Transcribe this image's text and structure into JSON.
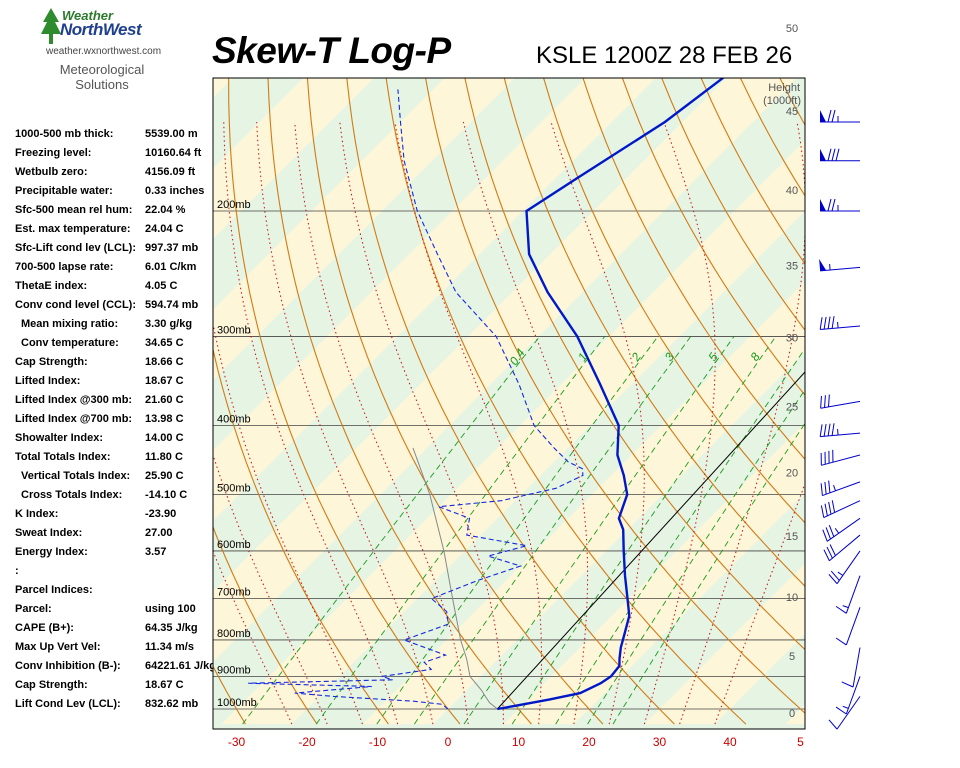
{
  "header": {
    "brand_line1": "Weather",
    "brand_line2": "NorthWest",
    "website": "weather.wxnorthwest.com",
    "subtitle_line1": "Meteorological",
    "subtitle_line2": "Solutions",
    "title": "Skew-T Log-P",
    "station_time": "KSLE 1200Z 28 FEB 26"
  },
  "indices": [
    {
      "label": "1000-500 mb thick:",
      "value": "5539.00 m",
      "indent": false
    },
    {
      "label": "Freezing level:",
      "value": "10160.64 ft",
      "indent": false
    },
    {
      "label": "Wetbulb zero:",
      "value": "4156.09 ft",
      "indent": false
    },
    {
      "label": "Precipitable water:",
      "value": "0.33 inches",
      "indent": false
    },
    {
      "label": "Sfc-500 mean rel hum:",
      "value": "22.04 %",
      "indent": false
    },
    {
      "label": "Est. max temperature:",
      "value": "24.04 C",
      "indent": false
    },
    {
      "label": "Sfc-Lift cond lev (LCL):",
      "value": "997.37 mb",
      "indent": false
    },
    {
      "label": "700-500 lapse rate:",
      "value": "6.01 C/km",
      "indent": false
    },
    {
      "label": "ThetaE index:",
      "value": "4.05 C",
      "indent": false
    },
    {
      "label": "Conv cond level (CCL):",
      "value": "594.74 mb",
      "indent": false
    },
    {
      "label": "Mean mixing ratio:",
      "value": "3.30 g/kg",
      "indent": true
    },
    {
      "label": "Conv temperature:",
      "value": "34.65 C",
      "indent": true
    },
    {
      "label": "Cap Strength:",
      "value": "18.66 C",
      "indent": false
    },
    {
      "label": "Lifted Index:",
      "value": "18.67 C",
      "indent": false
    },
    {
      "label": "Lifted Index @300 mb:",
      "value": "21.60 C",
      "indent": false
    },
    {
      "label": "Lifted Index @700 mb:",
      "value": "13.98 C",
      "indent": false
    },
    {
      "label": "Showalter Index:",
      "value": "14.00 C",
      "indent": false
    },
    {
      "label": "Total Totals Index:",
      "value": "11.80 C",
      "indent": false
    },
    {
      "label": "Vertical Totals Index:",
      "value": "25.90 C",
      "indent": true
    },
    {
      "label": "Cross Totals Index:",
      "value": "-14.10 C",
      "indent": true
    },
    {
      "label": "K Index:",
      "value": "-23.90",
      "indent": false
    },
    {
      "label": "Sweat Index:",
      "value": "27.00",
      "indent": false
    },
    {
      "label": "Energy Index:",
      "value": "3.57",
      "indent": false
    },
    {
      "label": ":",
      "value": "",
      "indent": false
    },
    {
      "label": "Parcel Indices:",
      "value": "",
      "indent": false
    },
    {
      "label": "Parcel:",
      "value": "using 100",
      "indent": false
    },
    {
      "label": "CAPE (B+):",
      "value": "64.35 J/kg",
      "indent": false
    },
    {
      "label": "Max Up Vert Vel:",
      "value": "11.34 m/s",
      "indent": false
    },
    {
      "label": "Conv Inhibition (B-):",
      "value": "64221.61 J/kg",
      "indent": false
    },
    {
      "label": "Cap Strength:",
      "value": "18.67 C",
      "indent": false
    },
    {
      "label": "Lift Cond Lev (LCL):",
      "value": "832.62 mb",
      "indent": false
    }
  ],
  "chart_data": {
    "type": "skew-t",
    "x_axis": {
      "ticks": [
        "-30",
        "-20",
        "-10",
        "0",
        "10",
        "20",
        "30",
        "40",
        "5"
      ],
      "range_c": [
        -33,
        50
      ]
    },
    "pressure_labels": [
      "200mb",
      "300mb",
      "400mb",
      "500mb",
      "600mb",
      "700mb",
      "800mb",
      "900mb",
      "1000mb"
    ],
    "pressure_levels_mb": [
      200,
      300,
      400,
      500,
      600,
      700,
      800,
      900,
      1000
    ],
    "height_axis": {
      "title_line1": "Height",
      "title_line2": "(1000ft)",
      "ticks": [
        "50",
        "45",
        "40",
        "35",
        "30",
        "25",
        "20",
        "15",
        "10",
        "5",
        "0"
      ]
    },
    "mixing_ratio_labels": [
      "0.4",
      "1",
      "2",
      "3",
      "5",
      "8"
    ],
    "colors": {
      "temperature": "#0018c8",
      "dewpoint": "#1428e0",
      "parcel": "#000000",
      "dry_adiabat": "#d27a14",
      "moist_adiabat": "#cc1010",
      "mixing_ratio": "#1a9a1a",
      "isobar": "#000000",
      "band_warm": "#fdf6d8",
      "band_cool": "#e6f4e4",
      "wind_barb": "#0000cc"
    },
    "temperature_profile": [
      {
        "p": 1000,
        "t": 7.0
      },
      {
        "p": 990,
        "t": 9.0
      },
      {
        "p": 970,
        "t": 13.0
      },
      {
        "p": 950,
        "t": 16.5
      },
      {
        "p": 920,
        "t": 18.0
      },
      {
        "p": 900,
        "t": 18.5
      },
      {
        "p": 870,
        "t": 18.2
      },
      {
        "p": 850,
        "t": 17.2
      },
      {
        "p": 820,
        "t": 15.8
      },
      {
        "p": 780,
        "t": 14.2
      },
      {
        "p": 740,
        "t": 12.5
      },
      {
        "p": 700,
        "t": 9.8
      },
      {
        "p": 650,
        "t": 6.2
      },
      {
        "p": 600,
        "t": 2.5
      },
      {
        "p": 560,
        "t": -0.6
      },
      {
        "p": 540,
        "t": -2.8
      },
      {
        "p": 500,
        "t": -5.0
      },
      {
        "p": 470,
        "t": -8.2
      },
      {
        "p": 440,
        "t": -12.0
      },
      {
        "p": 400,
        "t": -16.0
      },
      {
        "p": 350,
        "t": -24.5
      },
      {
        "p": 300,
        "t": -34.5
      },
      {
        "p": 260,
        "t": -45.0
      },
      {
        "p": 230,
        "t": -53.0
      },
      {
        "p": 200,
        "t": -59.5
      },
      {
        "p": 180,
        "t": -57.0
      },
      {
        "p": 150,
        "t": -52.5
      },
      {
        "p": 130,
        "t": -50.5
      }
    ],
    "dewpoint_profile": [
      {
        "p": 1000,
        "t": 0.0
      },
      {
        "p": 985,
        "t": -1.5
      },
      {
        "p": 975,
        "t": -6.0
      },
      {
        "p": 960,
        "t": -18.0
      },
      {
        "p": 950,
        "t": -24.0
      },
      {
        "p": 930,
        "t": -14.0
      },
      {
        "p": 920,
        "t": -32.0
      },
      {
        "p": 910,
        "t": -12.0
      },
      {
        "p": 900,
        "t": -14.0
      },
      {
        "p": 880,
        "t": -8.0
      },
      {
        "p": 860,
        "t": -10.0
      },
      {
        "p": 840,
        "t": -8.0
      },
      {
        "p": 800,
        "t": -16.0
      },
      {
        "p": 760,
        "t": -12.0
      },
      {
        "p": 730,
        "t": -14.0
      },
      {
        "p": 700,
        "t": -18.0
      },
      {
        "p": 660,
        "t": -14.0
      },
      {
        "p": 630,
        "t": -10.0
      },
      {
        "p": 610,
        "t": -16.0
      },
      {
        "p": 590,
        "t": -12.0
      },
      {
        "p": 570,
        "t": -22.0
      },
      {
        "p": 540,
        "t": -24.0
      },
      {
        "p": 520,
        "t": -30.0
      },
      {
        "p": 510,
        "t": -22.0
      },
      {
        "p": 490,
        "t": -16.0
      },
      {
        "p": 470,
        "t": -14.0
      },
      {
        "p": 460,
        "t": -15.0
      },
      {
        "p": 450,
        "t": -18.0
      },
      {
        "p": 430,
        "t": -22.0
      },
      {
        "p": 400,
        "t": -28.0
      },
      {
        "p": 350,
        "t": -36.0
      },
      {
        "p": 300,
        "t": -46.0
      },
      {
        "p": 260,
        "t": -58.0
      },
      {
        "p": 230,
        "t": -66.0
      },
      {
        "p": 200,
        "t": -75.0
      },
      {
        "p": 170,
        "t": -84.0
      },
      {
        "p": 150,
        "t": -90.0
      },
      {
        "p": 135,
        "t": -95.0
      }
    ],
    "parcel_trace": [
      {
        "p": 1000,
        "t": 7.0
      },
      {
        "p": 980,
        "t": 5.0
      },
      {
        "p": 940,
        "t": 2.0
      },
      {
        "p": 900,
        "t": -1.5
      },
      {
        "p": 850,
        "t": -4.5
      },
      {
        "p": 800,
        "t": -8.0
      },
      {
        "p": 700,
        "t": -15.0
      },
      {
        "p": 600,
        "t": -23.0
      },
      {
        "p": 500,
        "t": -33.0
      },
      {
        "p": 430,
        "t": -42.0
      }
    ],
    "wind_barbs": [
      {
        "p": 150,
        "dir": 270,
        "kt": 75
      },
      {
        "p": 170,
        "dir": 270,
        "kt": 80
      },
      {
        "p": 200,
        "dir": 270,
        "kt": 75
      },
      {
        "p": 240,
        "dir": 265,
        "kt": 55
      },
      {
        "p": 290,
        "dir": 265,
        "kt": 45
      },
      {
        "p": 370,
        "dir": 260,
        "kt": 30
      },
      {
        "p": 410,
        "dir": 265,
        "kt": 45
      },
      {
        "p": 440,
        "dir": 255,
        "kt": 40
      },
      {
        "p": 480,
        "dir": 250,
        "kt": 35
      },
      {
        "p": 510,
        "dir": 245,
        "kt": 40
      },
      {
        "p": 540,
        "dir": 235,
        "kt": 35
      },
      {
        "p": 570,
        "dir": 230,
        "kt": 30
      },
      {
        "p": 600,
        "dir": 215,
        "kt": 25
      },
      {
        "p": 650,
        "dir": 200,
        "kt": 15
      },
      {
        "p": 720,
        "dir": 200,
        "kt": 10
      },
      {
        "p": 820,
        "dir": 190,
        "kt": 10
      },
      {
        "p": 900,
        "dir": 200,
        "kt": 15
      },
      {
        "p": 960,
        "dir": 215,
        "kt": 10
      }
    ]
  }
}
